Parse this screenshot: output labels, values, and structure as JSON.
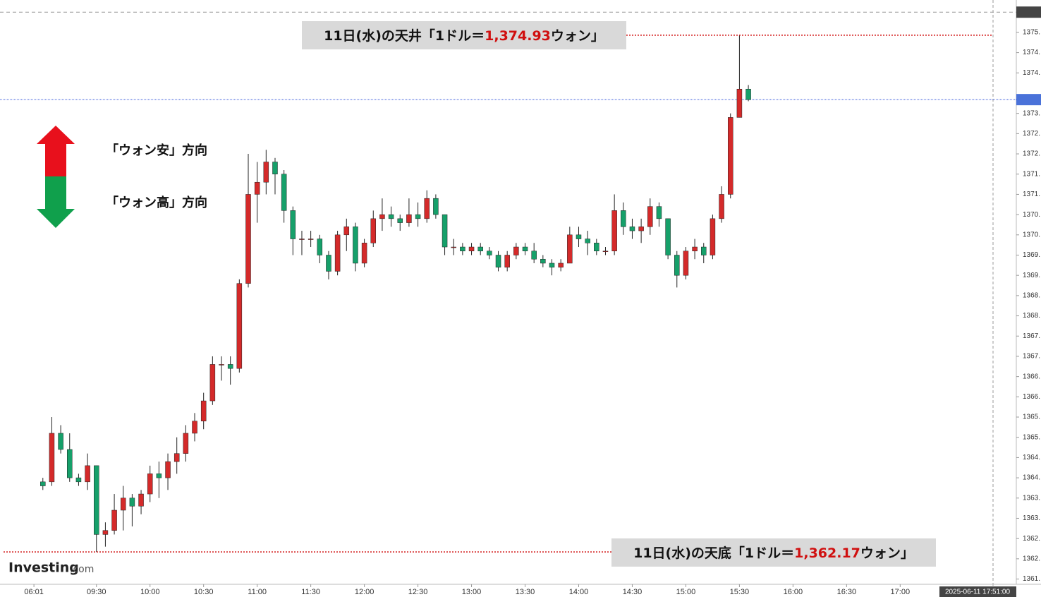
{
  "chart_data": {
    "type": "candlestick",
    "up_color": "#d42a2a",
    "down_color": "#16a06a",
    "ylim": [
      1361.37,
      1375.8
    ],
    "xlim": [
      516,
      1072
    ],
    "yticks": [
      {
        "value": 1361.5,
        "label": "1361."
      },
      {
        "value": 1362.0,
        "label": "1362."
      },
      {
        "value": 1362.5,
        "label": "1362."
      },
      {
        "value": 1363.0,
        "label": "1363."
      },
      {
        "value": 1363.5,
        "label": "1363."
      },
      {
        "value": 1364.0,
        "label": "1364."
      },
      {
        "value": 1364.5,
        "label": "1364."
      },
      {
        "value": 1365.0,
        "label": "1365."
      },
      {
        "value": 1365.5,
        "label": "1365."
      },
      {
        "value": 1366.0,
        "label": "1366."
      },
      {
        "value": 1366.5,
        "label": "1366."
      },
      {
        "value": 1367.0,
        "label": "1367."
      },
      {
        "value": 1367.5,
        "label": "1367."
      },
      {
        "value": 1368.0,
        "label": "1368."
      },
      {
        "value": 1368.5,
        "label": "1368."
      },
      {
        "value": 1369.0,
        "label": "1369."
      },
      {
        "value": 1369.5,
        "label": "1369."
      },
      {
        "value": 1370.0,
        "label": "1370."
      },
      {
        "value": 1370.5,
        "label": "1370."
      },
      {
        "value": 1371.0,
        "label": "1371."
      },
      {
        "value": 1371.5,
        "label": "1371."
      },
      {
        "value": 1372.0,
        "label": "1372."
      },
      {
        "value": 1372.5,
        "label": "1372."
      },
      {
        "value": 1373.0,
        "label": "1373."
      },
      {
        "value": 1374.0,
        "label": "1374."
      },
      {
        "value": 1374.5,
        "label": "1374."
      },
      {
        "value": 1375.0,
        "label": "1375."
      }
    ],
    "top_marker": {
      "value": 1375.5,
      "label": "1375"
    },
    "current_price": {
      "value": 1373.34,
      "label": "1373."
    },
    "xticks": [
      {
        "value": 535,
        "label": "06:01"
      },
      {
        "value": 570,
        "label": "09:30"
      },
      {
        "value": 600,
        "label": "10:00"
      },
      {
        "value": 630,
        "label": "10:30"
      },
      {
        "value": 660,
        "label": "11:00"
      },
      {
        "value": 690,
        "label": "11:30"
      },
      {
        "value": 720,
        "label": "12:00"
      },
      {
        "value": 750,
        "label": "12:30"
      },
      {
        "value": 780,
        "label": "13:00"
      },
      {
        "value": 810,
        "label": "13:30"
      },
      {
        "value": 840,
        "label": "14:00"
      },
      {
        "value": 870,
        "label": "14:30"
      },
      {
        "value": 900,
        "label": "15:00"
      },
      {
        "value": 930,
        "label": "15:30"
      },
      {
        "value": 960,
        "label": "16:00"
      },
      {
        "value": 990,
        "label": "16:30"
      },
      {
        "value": 1020,
        "label": "17:00"
      }
    ],
    "timestamp": "2025-06-11 17:51:00",
    "candles": {
      "x": [
        540,
        545,
        550,
        555,
        560,
        565,
        570,
        575,
        580,
        585,
        590,
        595,
        600,
        605,
        610,
        615,
        620,
        625,
        630,
        635,
        640,
        645,
        650,
        655,
        660,
        665,
        670,
        675,
        680,
        685,
        690,
        695,
        700,
        705,
        710,
        715,
        720,
        725,
        730,
        735,
        740,
        745,
        750,
        755,
        760,
        765,
        770,
        775,
        780,
        785,
        790,
        795,
        800,
        805,
        810,
        815,
        820,
        825,
        830,
        835,
        840,
        845,
        850,
        855,
        860,
        865,
        870,
        875,
        880,
        885,
        890,
        895,
        900,
        905,
        910,
        915,
        920,
        925,
        930,
        935
      ],
      "open": [
        1363.9,
        1363.9,
        1365.1,
        1364.7,
        1364.0,
        1363.9,
        1364.3,
        1362.6,
        1362.7,
        1363.2,
        1363.5,
        1363.3,
        1363.6,
        1364.1,
        1364.0,
        1364.4,
        1364.6,
        1365.1,
        1365.4,
        1365.9,
        1366.8,
        1366.8,
        1366.7,
        1368.8,
        1371.0,
        1371.3,
        1371.8,
        1371.5,
        1370.6,
        1369.9,
        1369.9,
        1369.9,
        1369.5,
        1369.1,
        1370.0,
        1370.2,
        1369.3,
        1369.8,
        1370.4,
        1370.5,
        1370.4,
        1370.3,
        1370.5,
        1370.4,
        1370.9,
        1370.5,
        1369.7,
        1369.7,
        1369.6,
        1369.7,
        1369.6,
        1369.5,
        1369.2,
        1369.5,
        1369.7,
        1369.6,
        1369.4,
        1369.3,
        1369.2,
        1369.3,
        1370.0,
        1369.9,
        1369.8,
        1369.6,
        1369.6,
        1370.6,
        1370.2,
        1370.1,
        1370.2,
        1370.7,
        1370.4,
        1369.5,
        1369.0,
        1369.6,
        1369.7,
        1369.5,
        1370.4,
        1371.0,
        1372.9,
        1373.6
      ],
      "high": [
        1364.0,
        1365.5,
        1365.3,
        1365.1,
        1364.1,
        1364.6,
        1364.3,
        1362.9,
        1363.6,
        1363.8,
        1363.6,
        1363.7,
        1364.3,
        1364.4,
        1364.6,
        1365.0,
        1365.3,
        1365.6,
        1366.1,
        1367.0,
        1367.0,
        1367.0,
        1368.9,
        1372.0,
        1371.8,
        1372.1,
        1371.9,
        1371.6,
        1370.7,
        1370.1,
        1370.1,
        1370.0,
        1369.6,
        1370.1,
        1370.4,
        1370.3,
        1369.9,
        1370.6,
        1370.9,
        1370.7,
        1370.5,
        1370.9,
        1370.8,
        1371.1,
        1371.0,
        1370.5,
        1369.9,
        1369.8,
        1369.8,
        1369.8,
        1369.7,
        1369.6,
        1369.6,
        1369.8,
        1369.8,
        1369.8,
        1369.5,
        1369.4,
        1369.4,
        1370.2,
        1370.2,
        1370.1,
        1369.9,
        1369.7,
        1371.0,
        1370.8,
        1370.4,
        1370.4,
        1370.9,
        1370.8,
        1370.4,
        1369.6,
        1369.7,
        1369.9,
        1369.8,
        1370.5,
        1371.2,
        1373.0,
        1374.93,
        1373.7
      ],
      "low": [
        1363.7,
        1363.8,
        1364.6,
        1363.9,
        1363.8,
        1363.7,
        1362.17,
        1362.3,
        1362.6,
        1362.7,
        1362.8,
        1363.1,
        1363.4,
        1363.5,
        1363.7,
        1364.1,
        1364.4,
        1364.9,
        1365.2,
        1365.8,
        1366.4,
        1366.3,
        1366.6,
        1368.7,
        1370.3,
        1371.0,
        1371.0,
        1370.3,
        1369.5,
        1369.5,
        1369.7,
        1369.3,
        1368.9,
        1369.0,
        1369.6,
        1369.1,
        1369.2,
        1369.7,
        1370.1,
        1370.2,
        1370.1,
        1370.2,
        1370.2,
        1370.3,
        1370.4,
        1369.5,
        1369.5,
        1369.5,
        1369.5,
        1369.5,
        1369.4,
        1369.1,
        1369.1,
        1369.4,
        1369.5,
        1369.3,
        1369.2,
        1369.0,
        1369.1,
        1369.3,
        1369.7,
        1369.5,
        1369.5,
        1369.5,
        1369.5,
        1370.0,
        1369.9,
        1369.8,
        1370.0,
        1370.2,
        1369.4,
        1368.7,
        1368.9,
        1369.4,
        1369.3,
        1369.4,
        1370.3,
        1370.9,
        1372.9,
        1373.3
      ],
      "close": [
        1363.8,
        1365.1,
        1364.7,
        1364.0,
        1363.9,
        1364.3,
        1362.6,
        1362.7,
        1363.2,
        1363.5,
        1363.3,
        1363.6,
        1364.1,
        1364.0,
        1364.4,
        1364.6,
        1365.1,
        1365.4,
        1365.9,
        1366.8,
        1366.8,
        1366.7,
        1368.8,
        1371.0,
        1371.3,
        1371.8,
        1371.5,
        1370.6,
        1369.9,
        1369.9,
        1369.9,
        1369.5,
        1369.1,
        1370.0,
        1370.2,
        1369.3,
        1369.8,
        1370.4,
        1370.5,
        1370.4,
        1370.3,
        1370.5,
        1370.4,
        1370.9,
        1370.5,
        1369.7,
        1369.7,
        1369.6,
        1369.7,
        1369.6,
        1369.5,
        1369.2,
        1369.5,
        1369.7,
        1369.6,
        1369.4,
        1369.3,
        1369.2,
        1369.3,
        1370.0,
        1369.9,
        1369.8,
        1369.6,
        1369.6,
        1370.6,
        1370.2,
        1370.1,
        1370.2,
        1370.7,
        1370.4,
        1369.5,
        1369.0,
        1369.6,
        1369.7,
        1369.5,
        1370.4,
        1371.0,
        1372.9,
        1373.6,
        1373.34
      ]
    },
    "annotations": [
      {
        "text_before": "11日(水)の天井「1ドル＝",
        "value": 1374.93,
        "value_label": "1,374.93",
        "text_after": "ウォン」"
      },
      {
        "text_before": "11日(水)の天底「1ドル＝",
        "value": 1362.17,
        "value_label": "1,362.17",
        "text_after": "ウォン」"
      }
    ],
    "legend": {
      "up": "「ウォン安」方向",
      "down": "「ウォン高」方向"
    },
    "logo": {
      "main": "Investing",
      "suffix": ".com"
    }
  }
}
